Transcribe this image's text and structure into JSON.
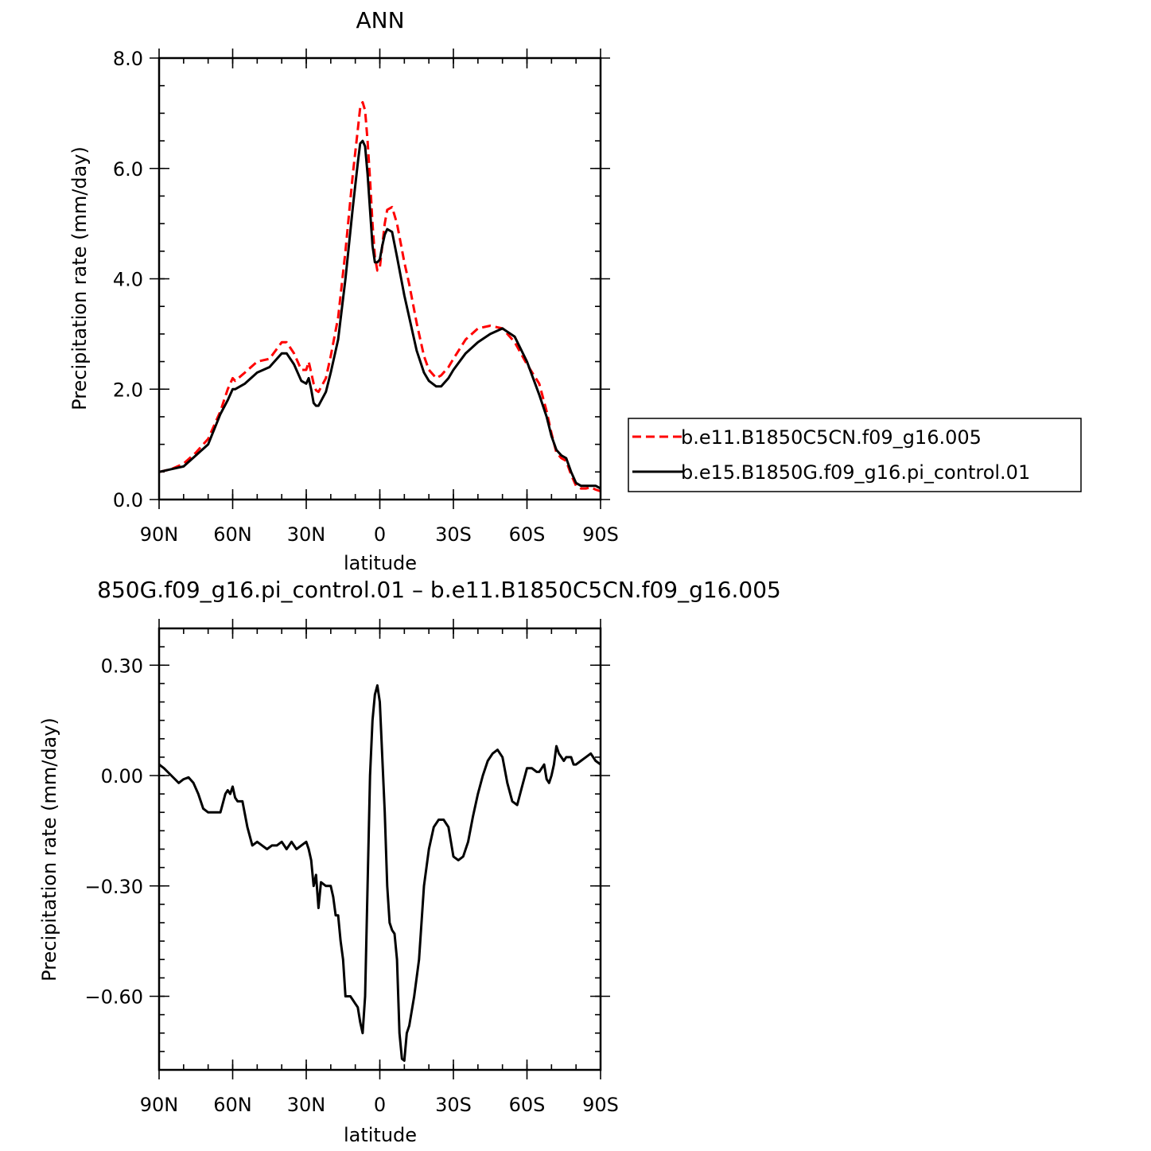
{
  "chart_data": [
    {
      "type": "line",
      "title": "ANN",
      "xlabel": "latitude",
      "ylabel": "Precipitation rate (mm/day)",
      "xlim": [
        90,
        -90
      ],
      "ylim": [
        0,
        8
      ],
      "x_tick_values": [
        90,
        60,
        30,
        0,
        -30,
        -60,
        -90
      ],
      "x_tick_labels": [
        "90N",
        "60N",
        "30N",
        "0",
        "30S",
        "60S",
        "90S"
      ],
      "y_tick_values": [
        0,
        2,
        4,
        6,
        8
      ],
      "y_tick_labels": [
        "0.0",
        "2.0",
        "4.0",
        "6.0",
        "8.0"
      ],
      "legend": {
        "placement": "right",
        "entries": [
          {
            "label": "b.e11.B1850C5CN.f09_g16.005",
            "color": "#ff0000",
            "dash": "dashed"
          },
          {
            "label": "b.e15.B1850G.f09_g16.pi_control.01",
            "color": "#000000",
            "dash": "solid"
          }
        ]
      },
      "series": [
        {
          "name": "b.e11.B1850C5CN.f09_g16.005",
          "color": "#ff0000",
          "dash": "dashed",
          "x": [
            90,
            85,
            80,
            75,
            70,
            65,
            62,
            60,
            59,
            55,
            50,
            45,
            40,
            38,
            35,
            32,
            30,
            29,
            28,
            27,
            26,
            25,
            22,
            20,
            17,
            14,
            11,
            9,
            8,
            7,
            6,
            5,
            4,
            3,
            2,
            1,
            0,
            -1,
            -2,
            -3,
            -5,
            -7,
            -10,
            -12,
            -15,
            -18,
            -20,
            -23,
            -25,
            -28,
            -30,
            -35,
            -40,
            -45,
            -50,
            -55,
            -60,
            -65,
            -68,
            -70,
            -72,
            -74,
            -76,
            -78,
            -80,
            -82,
            -84,
            -86,
            -88,
            -90
          ],
          "y": [
            0.5,
            0.55,
            0.65,
            0.85,
            1.1,
            1.6,
            2.0,
            2.2,
            2.15,
            2.3,
            2.5,
            2.55,
            2.85,
            2.85,
            2.65,
            2.35,
            2.35,
            2.5,
            2.3,
            2.1,
            1.98,
            1.95,
            2.2,
            2.6,
            3.3,
            4.5,
            5.9,
            6.7,
            7.1,
            7.2,
            7.05,
            6.5,
            5.8,
            5.0,
            4.4,
            4.15,
            4.2,
            4.6,
            5.0,
            5.25,
            5.3,
            5.0,
            4.3,
            3.9,
            3.2,
            2.6,
            2.35,
            2.2,
            2.25,
            2.4,
            2.55,
            2.9,
            3.1,
            3.15,
            3.1,
            2.85,
            2.45,
            2.1,
            1.6,
            1.2,
            0.85,
            0.75,
            0.7,
            0.45,
            0.25,
            0.2,
            0.2,
            0.22,
            0.18,
            0.15
          ]
        },
        {
          "name": "b.e15.B1850G.f09_g16.pi_control.01",
          "color": "#000000",
          "dash": "solid",
          "x": [
            90,
            85,
            80,
            75,
            70,
            65,
            62,
            60,
            59,
            55,
            50,
            45,
            40,
            38,
            35,
            32,
            30,
            29,
            28,
            27,
            26,
            25,
            22,
            20,
            17,
            14,
            11,
            9,
            8,
            7,
            6,
            5,
            4,
            3,
            2,
            1,
            0,
            -1,
            -2,
            -3,
            -5,
            -7,
            -10,
            -12,
            -15,
            -18,
            -20,
            -23,
            -25,
            -28,
            -30,
            -35,
            -40,
            -45,
            -50,
            -55,
            -60,
            -65,
            -68,
            -70,
            -72,
            -74,
            -76,
            -78,
            -80,
            -82,
            -84,
            -86,
            -88,
            -90
          ],
          "y": [
            0.5,
            0.55,
            0.6,
            0.8,
            1.0,
            1.55,
            1.8,
            2.0,
            2.0,
            2.1,
            2.3,
            2.4,
            2.65,
            2.65,
            2.45,
            2.15,
            2.1,
            2.2,
            2.0,
            1.75,
            1.7,
            1.7,
            1.95,
            2.3,
            2.9,
            4.0,
            5.3,
            6.1,
            6.45,
            6.5,
            6.4,
            5.9,
            5.25,
            4.6,
            4.3,
            4.3,
            4.35,
            4.6,
            4.8,
            4.9,
            4.85,
            4.4,
            3.7,
            3.3,
            2.7,
            2.3,
            2.15,
            2.05,
            2.05,
            2.2,
            2.35,
            2.65,
            2.85,
            3.0,
            3.1,
            2.95,
            2.5,
            1.9,
            1.5,
            1.15,
            0.9,
            0.8,
            0.75,
            0.5,
            0.3,
            0.25,
            0.25,
            0.25,
            0.25,
            0.2
          ]
        }
      ]
    },
    {
      "type": "line",
      "title": "850G.f09_g16.pi_control.01 – b.e11.B1850C5CN.f09_g16.005",
      "xlabel": "latitude",
      "ylabel": "Precipitation rate (mm/day)",
      "xlim": [
        90,
        -90
      ],
      "ylim": [
        -0.8,
        0.4
      ],
      "x_tick_values": [
        90,
        60,
        30,
        0,
        -30,
        -60,
        -90
      ],
      "x_tick_labels": [
        "90N",
        "60N",
        "30N",
        "0",
        "30S",
        "60S",
        "90S"
      ],
      "y_tick_values": [
        0.3,
        0.0,
        -0.3,
        -0.6
      ],
      "y_tick_labels": [
        "0.30",
        "0.00",
        "−0.30",
        "−0.60"
      ],
      "series": [
        {
          "color": "#000000",
          "dash": "solid",
          "x": [
            90,
            88,
            85,
            82,
            80,
            78,
            76,
            74,
            72,
            70,
            68,
            65,
            63,
            62,
            61,
            60,
            59,
            58,
            56,
            54,
            52,
            50,
            48,
            46,
            44,
            42,
            40,
            38,
            36,
            34,
            32,
            30,
            29,
            28,
            27,
            26,
            25,
            24,
            22,
            20,
            19,
            18,
            17,
            16,
            15,
            14,
            12,
            11,
            10,
            9,
            8,
            7,
            6,
            5,
            4,
            3,
            2,
            1,
            0,
            -1,
            -2,
            -3,
            -4,
            -5,
            -6,
            -7,
            -8,
            -9,
            -10,
            -11,
            -12,
            -14,
            -16,
            -18,
            -20,
            -22,
            -24,
            -26,
            -28,
            -30,
            -32,
            -34,
            -36,
            -38,
            -40,
            -42,
            -44,
            -46,
            -48,
            -50,
            -52,
            -54,
            -56,
            -58,
            -60,
            -62,
            -64,
            -65,
            -66,
            -67,
            -68,
            -69,
            -70,
            -71,
            -72,
            -73,
            -74,
            -75,
            -76,
            -77,
            -78,
            -79,
            -80,
            -82,
            -84,
            -86,
            -88,
            -90
          ],
          "y": [
            0.03,
            0.02,
            0.0,
            -0.02,
            -0.01,
            -0.005,
            -0.02,
            -0.05,
            -0.09,
            -0.1,
            -0.1,
            -0.1,
            -0.05,
            -0.04,
            -0.05,
            -0.03,
            -0.06,
            -0.07,
            -0.07,
            -0.14,
            -0.19,
            -0.18,
            -0.19,
            -0.2,
            -0.19,
            -0.19,
            -0.18,
            -0.2,
            -0.18,
            -0.2,
            -0.19,
            -0.18,
            -0.2,
            -0.23,
            -0.3,
            -0.27,
            -0.36,
            -0.29,
            -0.3,
            -0.3,
            -0.33,
            -0.38,
            -0.38,
            -0.45,
            -0.5,
            -0.6,
            -0.6,
            -0.61,
            -0.62,
            -0.63,
            -0.67,
            -0.7,
            -0.6,
            -0.3,
            0.0,
            0.15,
            0.22,
            0.245,
            0.2,
            0.05,
            -0.1,
            -0.3,
            -0.4,
            -0.42,
            -0.43,
            -0.5,
            -0.7,
            -0.77,
            -0.775,
            -0.7,
            -0.68,
            -0.6,
            -0.5,
            -0.3,
            -0.2,
            -0.14,
            -0.12,
            -0.12,
            -0.14,
            -0.22,
            -0.23,
            -0.22,
            -0.18,
            -0.11,
            -0.05,
            0.0,
            0.04,
            0.06,
            0.07,
            0.05,
            -0.02,
            -0.07,
            -0.08,
            -0.03,
            0.02,
            0.02,
            0.01,
            0.01,
            0.02,
            0.03,
            -0.01,
            -0.02,
            0.0,
            0.03,
            0.08,
            0.06,
            0.05,
            0.04,
            0.05,
            0.05,
            0.05,
            0.03,
            0.03,
            0.04,
            0.05,
            0.06,
            0.04,
            0.03
          ]
        }
      ]
    }
  ]
}
